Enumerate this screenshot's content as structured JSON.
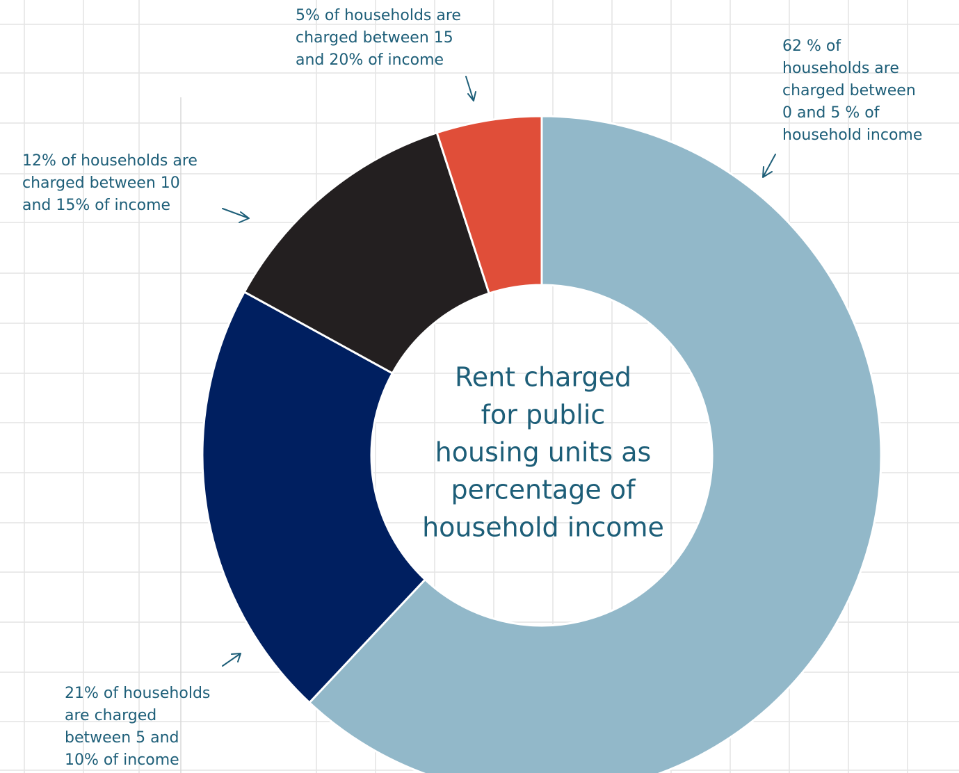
{
  "chart_data": {
    "type": "pie",
    "title": [
      "Rent charged",
      "for public",
      "housing units as",
      "percentage of",
      "household income"
    ],
    "values": [
      62,
      21,
      12,
      5
    ],
    "colors": [
      "#92b8c9",
      "#001f60",
      "#231f20",
      "#e04e39"
    ],
    "annotations": [
      [
        "62 % of",
        "households are",
        "charged between",
        "0 and 5 % of",
        "household income"
      ],
      [
        "21% of households",
        "are charged",
        "between 5 and",
        "10% of income"
      ],
      [
        "12% of households are",
        "charged between 10",
        "and 15% of income"
      ],
      [
        "5% of households are",
        "charged between 15",
        "and 20% of income"
      ]
    ]
  }
}
